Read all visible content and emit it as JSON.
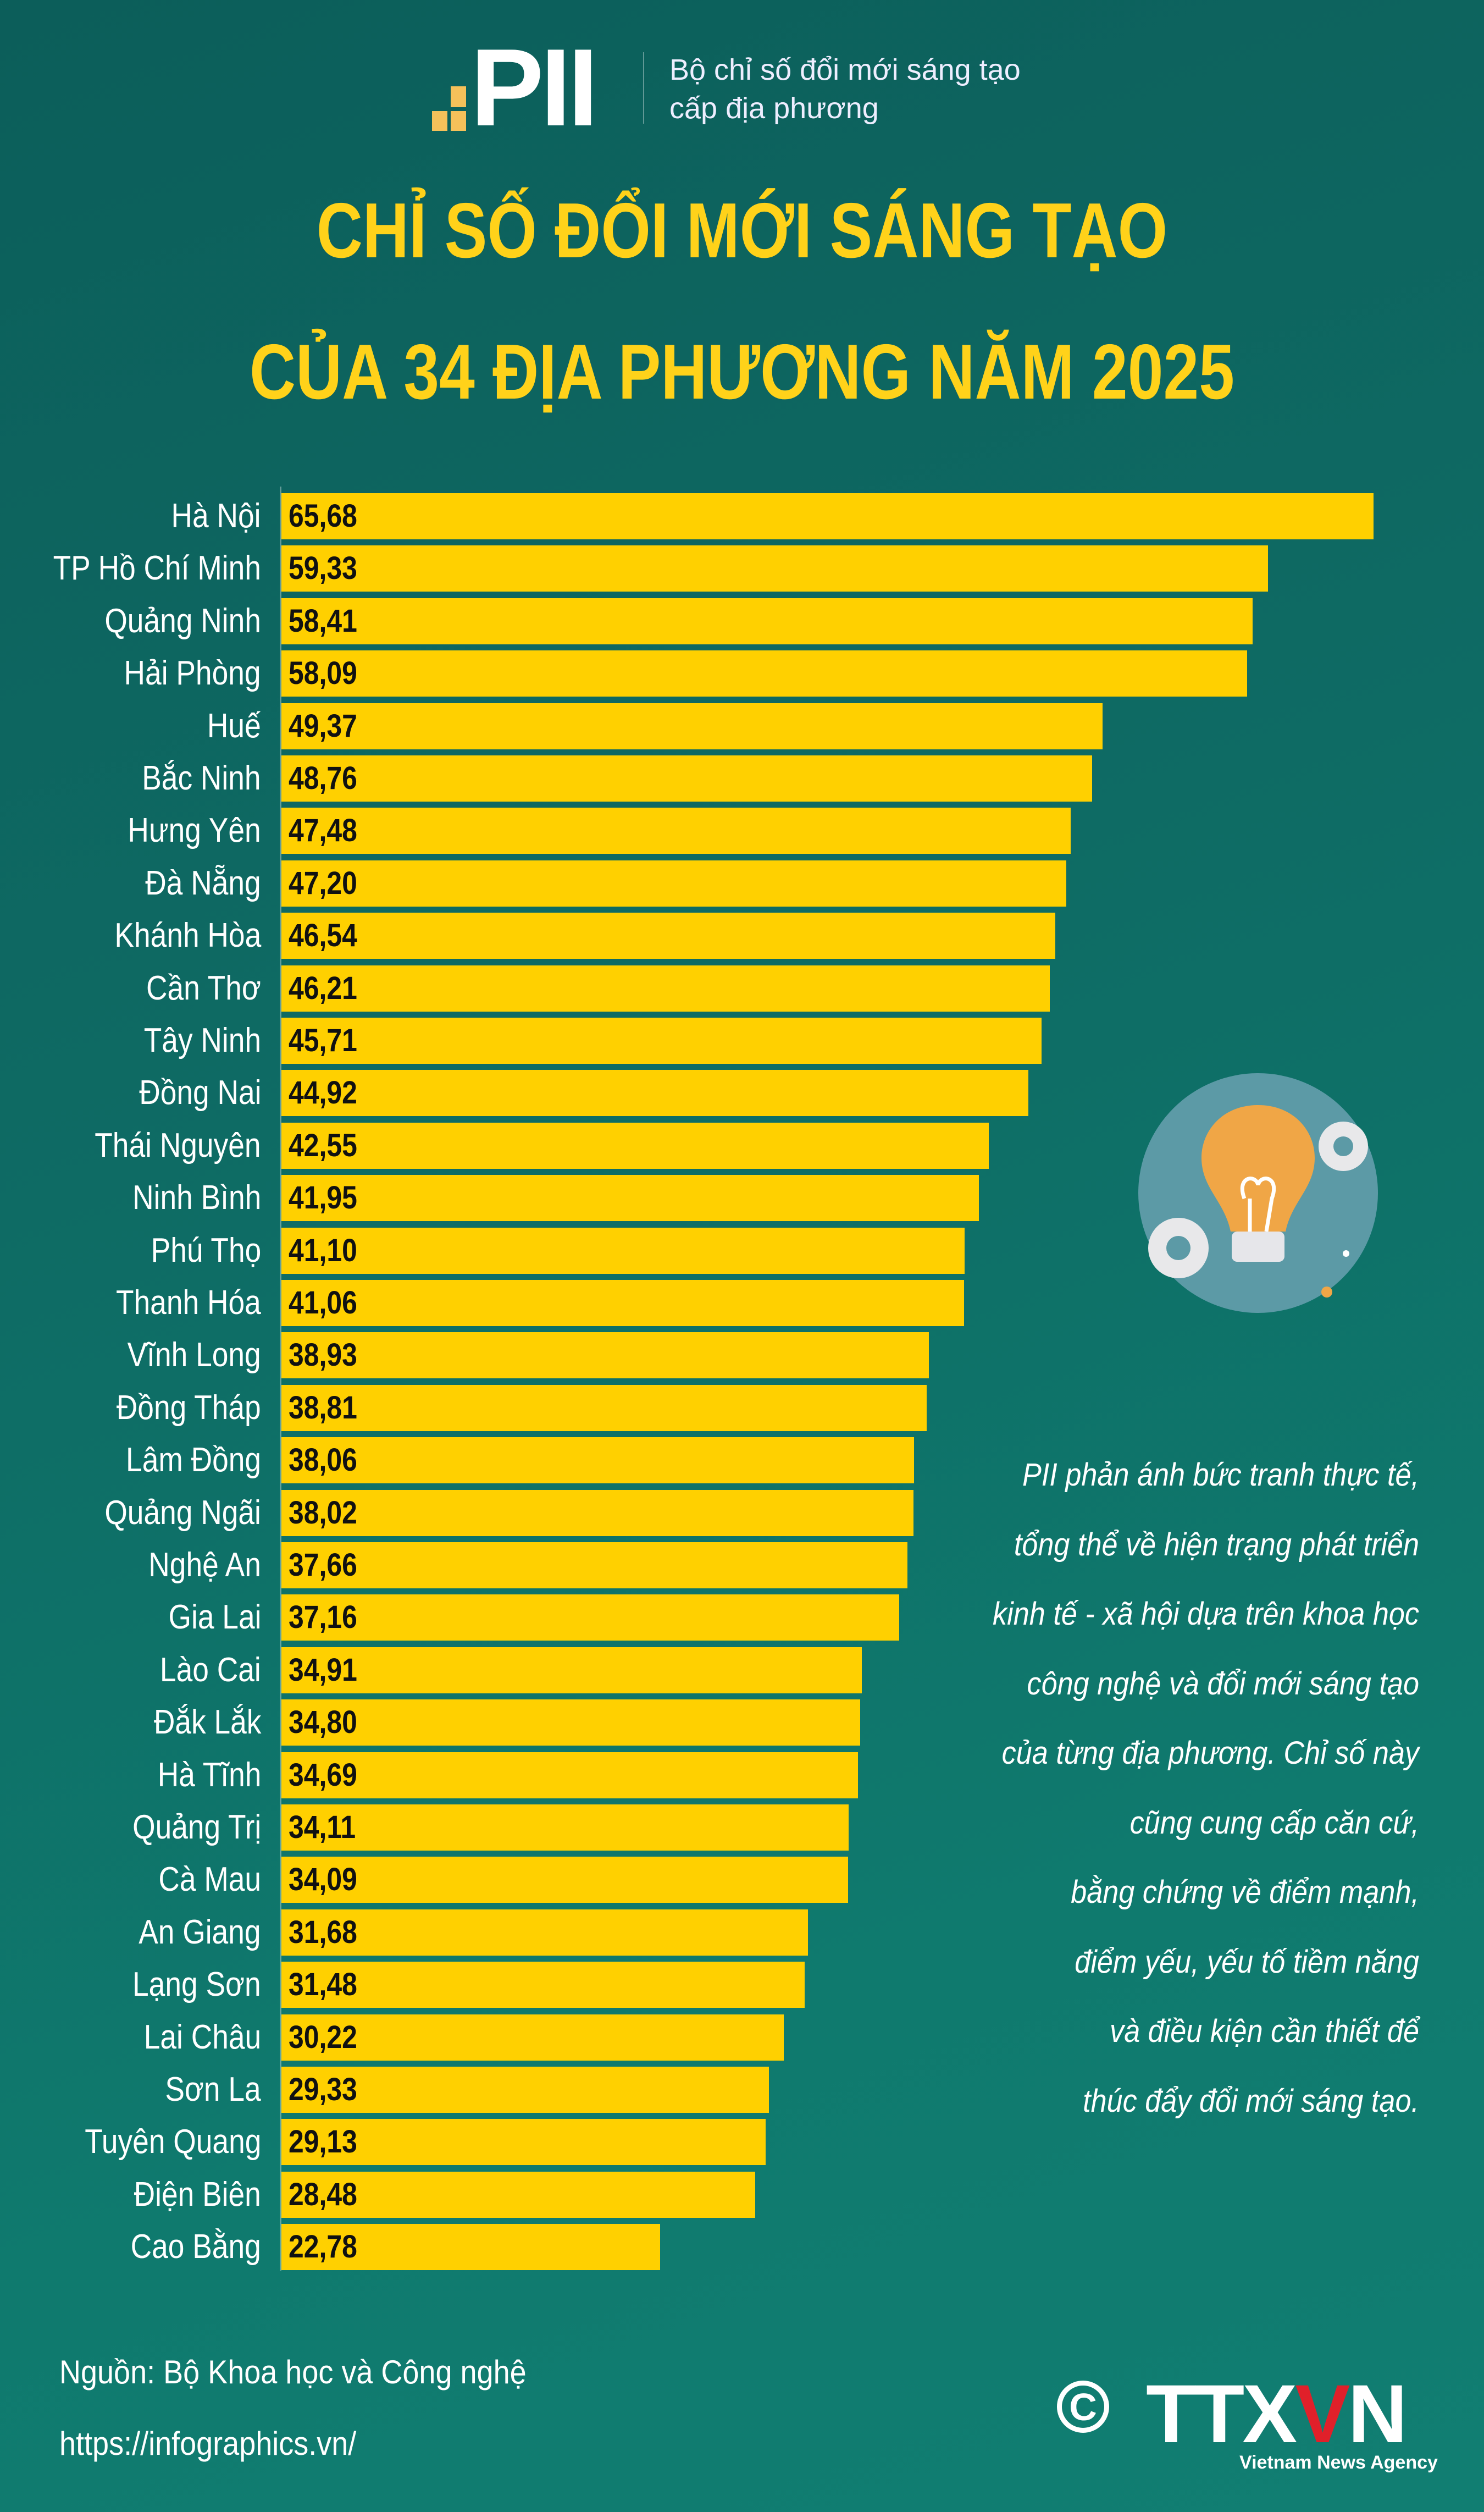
{
  "header": {
    "logo_text": "PII",
    "logo_caption_line1": "Bộ chỉ số đổi mới sáng tạo",
    "logo_caption_line2": "cấp địa phương",
    "title_line1": "CHỈ SỐ ĐỔI MỚI SÁNG TẠO",
    "title_line2": "CỦA 34 ĐỊA PHƯƠNG NĂM 2025"
  },
  "colors": {
    "bar": "#ffd000",
    "title": "#ffd21a",
    "background": "#0e6b64"
  },
  "chart_data": {
    "type": "bar",
    "orientation": "horizontal",
    "title": "CHỈ SỐ ĐỔI MỚI SÁNG TẠO CỦA 34 ĐỊA PHƯƠNG NĂM 2025",
    "xlim": [
      0,
      65.68
    ],
    "grid": false,
    "categories": [
      "Hà Nội",
      "TP Hồ Chí Minh",
      "Quảng Ninh",
      "Hải Phòng",
      "Huế",
      "Bắc Ninh",
      "Hưng Yên",
      "Đà Nẵng",
      "Khánh Hòa",
      "Cần Thơ",
      "Tây Ninh",
      "Đồng Nai",
      "Thái Nguyên",
      "Ninh Bình",
      "Phú Thọ",
      "Thanh Hóa",
      "Vĩnh Long",
      "Đồng Tháp",
      "Lâm Đồng",
      "Quảng Ngãi",
      "Nghệ An",
      "Gia Lai",
      "Lào Cai",
      "Đắk Lắk",
      "Hà Tĩnh",
      "Quảng Trị",
      "Cà Mau",
      "An Giang",
      "Lạng Sơn",
      "Lai Châu",
      "Sơn La",
      "Tuyên Quang",
      "Điện Biên",
      "Cao Bằng"
    ],
    "values": [
      65.68,
      59.33,
      58.41,
      58.09,
      49.37,
      48.76,
      47.48,
      47.2,
      46.54,
      46.21,
      45.71,
      44.92,
      42.55,
      41.95,
      41.1,
      41.06,
      38.93,
      38.81,
      38.06,
      38.02,
      37.66,
      37.16,
      34.91,
      34.8,
      34.69,
      34.11,
      34.09,
      31.68,
      31.48,
      30.22,
      29.33,
      29.13,
      28.48,
      22.78
    ],
    "labels": [
      "65,68",
      "59,33",
      "58,41",
      "58,09",
      "49,37",
      "48,76",
      "47,48",
      "47,20",
      "46,54",
      "46,21",
      "45,71",
      "44,92",
      "42,55",
      "41,95",
      "41,10",
      "41,06",
      "38,93",
      "38,81",
      "38,06",
      "38,02",
      "37,66",
      "37,16",
      "34,91",
      "34,80",
      "34,69",
      "34,11",
      "34,09",
      "31,68",
      "31,48",
      "30,22",
      "29,33",
      "29,13",
      "28,48",
      "22,78"
    ]
  },
  "note_lines": [
    "PII phản ánh bức tranh thực tế,",
    "tổng thể về hiện trạng phát triển",
    "kinh tế - xã hội dựa trên khoa học",
    "công nghệ và đổi mới sáng tạo",
    "của từng địa phương. Chỉ số này",
    "cũng cung cấp căn cứ,",
    "bằng chứng về điểm mạnh,",
    "điểm yếu, yếu tố tiềm năng",
    "và điều kiện cần thiết để",
    "thúc đẩy đổi mới sáng tạo."
  ],
  "footer": {
    "source": "Nguồn: Bộ Khoa học và Công nghệ",
    "url": "https://infographics.vn/",
    "copyright_symbol": "C",
    "agency_logo": "TTXVN",
    "agency_name": "Vietnam News Agency"
  }
}
